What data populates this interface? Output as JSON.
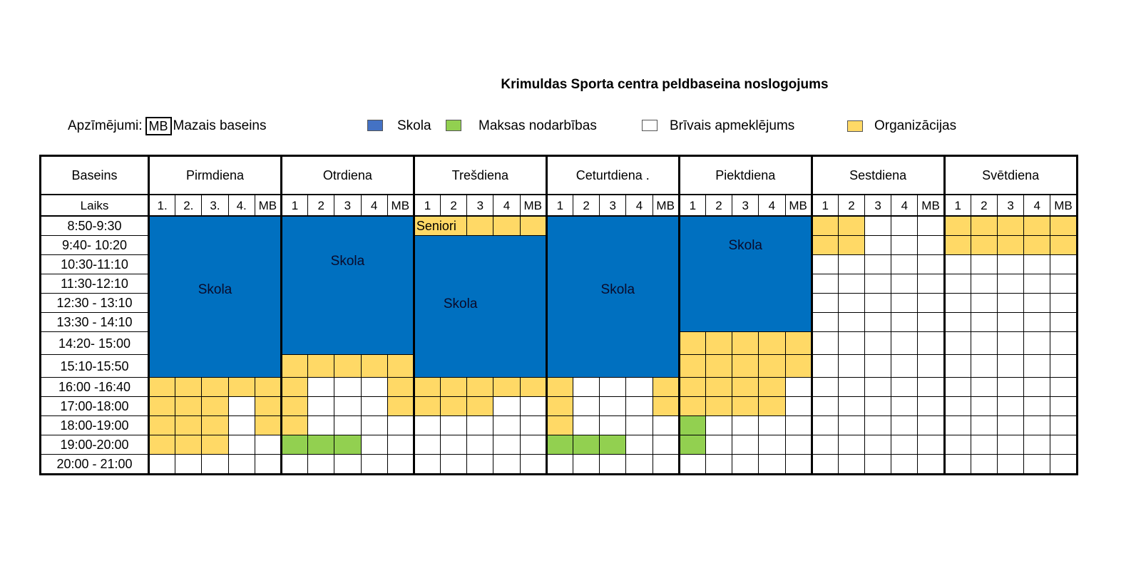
{
  "title": "Krimuldas Sporta centra peldbaseina noslogojums",
  "legend": {
    "prefix": "Apzīmējumi:",
    "mb_badge": "MB",
    "mb_label": "Mazais baseins",
    "items": [
      {
        "label": "Skola",
        "color": "#4472c4"
      },
      {
        "label": "Maksas nodarbības",
        "color": "#92d050"
      },
      {
        "label": "Brīvais apmeklējums",
        "color": "#ffffff"
      },
      {
        "label": "Organizācijas",
        "color": "#ffd966"
      }
    ]
  },
  "colors": {
    "school": "#0070c0",
    "org": "#ffd966",
    "paid": "#92d050",
    "free": "#ffffff"
  },
  "table": {
    "corner_top": "Baseins",
    "corner_bottom": "Laiks",
    "days": [
      "Pirmdiena",
      "Otrdiena",
      "Trešdiena",
      "Ceturtdiena .",
      "Piektdiena",
      "Sestdiena",
      "Svētdiena"
    ],
    "lanes": [
      [
        "1.",
        "2.",
        "3.",
        "4.",
        "MB"
      ],
      [
        "1",
        "2",
        "3",
        "4",
        "MB"
      ],
      [
        "1",
        "2",
        "3",
        "4",
        "MB"
      ],
      [
        "1",
        "2",
        "3",
        "4",
        "MB"
      ],
      [
        "1",
        "2",
        "3",
        "4",
        "MB"
      ],
      [
        "1",
        "2",
        "3",
        "4",
        "MB"
      ],
      [
        "1",
        "2",
        "3",
        "4",
        "MB"
      ]
    ],
    "times": [
      "8:50-9:30",
      "9:40-  10:20",
      "10:30-11:10",
      "11:30-12:10",
      "12:30 - 13:10",
      "13:30 - 14:10",
      "14:20- 15:00",
      "15:10-15:50",
      "16:00 -16:40",
      "17:00-18:00",
      "18:00-19:00",
      "19:00-20:00",
      "20:00 - 21:00"
    ],
    "school_label": "Skola",
    "seniori_label": "Seniori",
    "grid": [
      [
        "SSSSS",
        "SSSSS",
        "OOOOO",
        "SSSSS",
        "SSSSS",
        "OOFFF",
        "OOOOO"
      ],
      [
        "SSSSS",
        "SSSSS",
        "SSSSS",
        "SSSSS",
        "SSSSS",
        "OOFFF",
        "OOOOO"
      ],
      [
        "SSSSS",
        "SSSSS",
        "SSSSS",
        "SSSSS",
        "SSSSS",
        "FFFFF",
        "FFFFF"
      ],
      [
        "SSSSS",
        "SSSSS",
        "SSSSS",
        "SSSSS",
        "SSSSS",
        "FFFFF",
        "FFFFF"
      ],
      [
        "SSSSS",
        "SSSSS",
        "SSSSS",
        "SSSSS",
        "SSSSS",
        "FFFFF",
        "FFFFF"
      ],
      [
        "SSSSS",
        "SSSSS",
        "SSSSS",
        "SSSSS",
        "SSSSS",
        "FFFFF",
        "FFFFF"
      ],
      [
        "SSSSS",
        "SSSSS",
        "SSSSS",
        "SSSSS",
        "OOOOO",
        "FFFFF",
        "FFFFF"
      ],
      [
        "SSSSS",
        "OOOOO",
        "SSSSS",
        "SSSSS",
        "OOOOO",
        "FFFFF",
        "FFFFF"
      ],
      [
        "OOOOO",
        "OFFFO",
        "OOOOO",
        "OFFFO",
        "OOOOF",
        "FFFFF",
        "FFFFF"
      ],
      [
        "OOOFO",
        "OFFFO",
        "OOOFF",
        "OFFFO",
        "OOOOF",
        "FFFFF",
        "FFFFF"
      ],
      [
        "OOOFO",
        "OFFFF",
        "FFFFF",
        "OFFFF",
        "PFFFF",
        "FFFFF",
        "FFFFF"
      ],
      [
        "OOOFF",
        "PPPFF",
        "FFFFF",
        "PPPFF",
        "PFFFF",
        "FFFFF",
        "FFFFF"
      ],
      [
        "FFFFF",
        "FFFFF",
        "FFFFF",
        "FFFFF",
        "FFFFF",
        "FFFFF",
        "FFFFF"
      ]
    ]
  }
}
